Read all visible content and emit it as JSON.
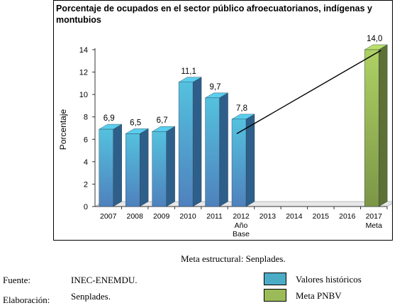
{
  "chart_data": {
    "type": "bar",
    "title": "Porcentaje de ocupados en el sector público afroecuatorianos, indígenas y montubios",
    "ylabel": "Porcentaje",
    "xlabel": "",
    "ylim": [
      0,
      14
    ],
    "yticks": [
      0,
      2,
      4,
      6,
      8,
      10,
      12,
      14
    ],
    "grid": false,
    "categories": [
      "2007",
      "2008",
      "2009",
      "2010",
      "2011",
      "2012",
      "2013",
      "2014",
      "2015",
      "2016",
      "2017"
    ],
    "category_sublabels": {
      "2012": [
        "Año",
        "Base"
      ],
      "2017": [
        "Meta"
      ]
    },
    "series": [
      {
        "name": "Valores históricos",
        "color": "#4BACC6",
        "values": [
          6.9,
          6.5,
          6.7,
          11.1,
          9.7,
          7.8,
          null,
          null,
          null,
          null,
          null
        ],
        "labels": [
          "6,9",
          "6,5",
          "6,7",
          "11,1",
          "9,7",
          "7,8",
          "",
          "",
          "",
          "",
          ""
        ]
      },
      {
        "name": "Meta PNBV",
        "color": "#9BBB59",
        "values": [
          null,
          null,
          null,
          null,
          null,
          null,
          null,
          null,
          null,
          null,
          14.0
        ],
        "labels": [
          "",
          "",
          "",
          "",
          "",
          "",
          "",
          "",
          "",
          "",
          "14,0"
        ]
      }
    ],
    "trend_line": {
      "from": {
        "x": "2012",
        "y": 6.5
      },
      "to": {
        "x": "2017",
        "y": 14.0
      }
    }
  },
  "caption": "Meta estructural: Senplades.",
  "source": {
    "label": "Fuente:",
    "value": "INEC-ENEMDU."
  },
  "elaboration": {
    "label": "Elaboración:",
    "value": "Senplades."
  },
  "legend": [
    {
      "label": "Valores históricos",
      "color": "#4BACC6"
    },
    {
      "label": "Meta PNBV",
      "color": "#9BBB59"
    }
  ]
}
